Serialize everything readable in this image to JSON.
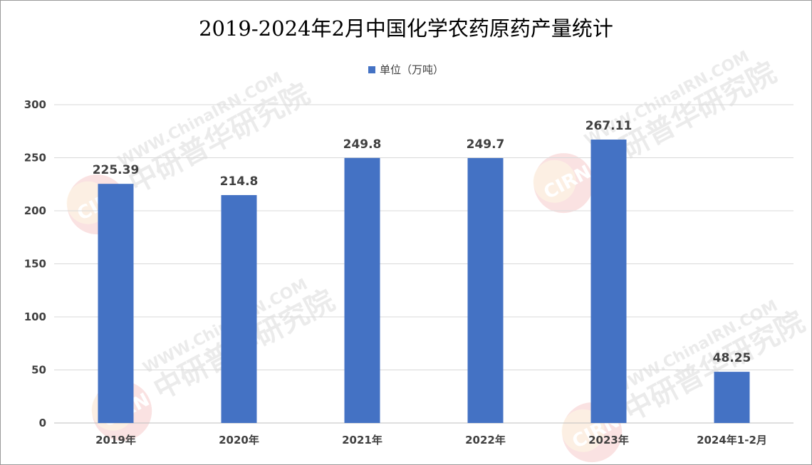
{
  "chart_data": {
    "type": "bar",
    "title": "2019-2024年2月中国化学农药原药产量统计",
    "categories": [
      "2019年",
      "2020年",
      "2021年",
      "2022年",
      "2023年",
      "2024年1-2月"
    ],
    "series": [
      {
        "name": "单位（万吨）",
        "values": [
          225.39,
          214.8,
          249.8,
          249.7,
          267.11,
          48.25
        ]
      }
    ],
    "data_labels": [
      "225.39",
      "214.8",
      "249.8",
      "249.7",
      "267.11",
      "48.25"
    ],
    "yticks": [
      0,
      50,
      100,
      150,
      200,
      250,
      300
    ],
    "ylim": [
      0,
      300
    ],
    "xlabel": "",
    "ylabel": "",
    "grid": true,
    "legend_position": "top-center",
    "colors": {
      "bar": "#4472C4",
      "grid": "#D9D9D9",
      "axis": "#BFBFBF",
      "text": "#404040"
    }
  },
  "watermark": {
    "site": "WWW.ChinaIRN.COM",
    "brand": "中研普华研究院",
    "logo": "CIRN"
  }
}
